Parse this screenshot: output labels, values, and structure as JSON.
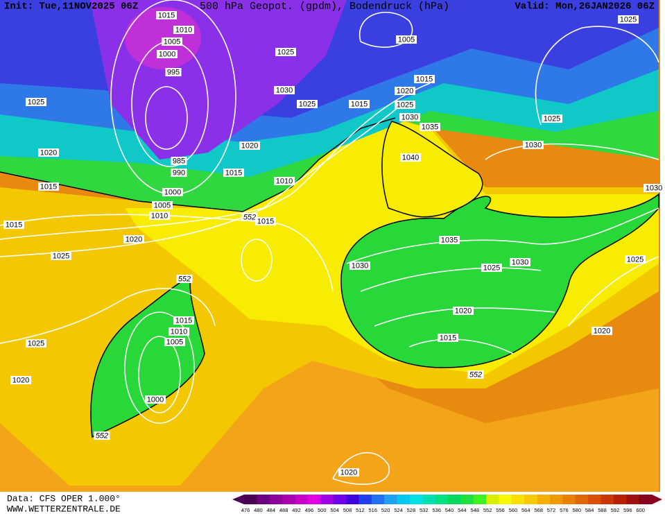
{
  "header": {
    "init": "Init: Tue,11NOV2025 06Z",
    "title": "500 hPa Geopot. (gpdm), Bodendruck (hPa)",
    "valid": "Valid: Mon,26JAN2026 06Z"
  },
  "footer": {
    "data": "Data: CFS OPER 1.000°",
    "site": "WWW.WETTERZENTRALE.DE"
  },
  "isobar_labels": [
    1015,
    1010,
    1005,
    1000,
    995,
    985,
    990,
    1025,
    1020,
    1015,
    1000,
    1005,
    1010,
    1015,
    1020,
    1025,
    1015,
    1020,
    1010,
    1025,
    1030,
    1025,
    1005,
    1015,
    1020,
    1015,
    1025,
    1030,
    1035,
    1040,
    1025,
    1025,
    1030,
    1030,
    1015,
    552,
    552,
    1015,
    1010,
    1005,
    1000,
    552,
    1025,
    1020,
    1035,
    1030,
    1025,
    1030,
    1020,
    1015,
    552,
    1025,
    1020,
    1020
  ],
  "colorbar": {
    "labels": [
      476,
      480,
      484,
      488,
      492,
      496,
      500,
      504,
      508,
      512,
      516,
      520,
      524,
      528,
      532,
      536,
      540,
      544,
      548,
      552,
      556,
      560,
      564,
      568,
      572,
      576,
      580,
      584,
      588,
      592,
      596,
      600
    ],
    "colors": [
      "#4b0055",
      "#6a0080",
      "#8a0099",
      "#a800b0",
      "#c800c8",
      "#e000e0",
      "#a000e8",
      "#7000e8",
      "#4000e0",
      "#2040f0",
      "#2070f0",
      "#20a0f0",
      "#00c8f0",
      "#00e0e0",
      "#00e0b0",
      "#00e080",
      "#00d860",
      "#20e040",
      "#40f020",
      "#d8f000",
      "#f8f800",
      "#f8e000",
      "#f8c800",
      "#f8b000",
      "#f09800",
      "#e88000",
      "#e06800",
      "#d85000",
      "#c83800",
      "#b82000",
      "#a01010",
      "#880020"
    ]
  }
}
